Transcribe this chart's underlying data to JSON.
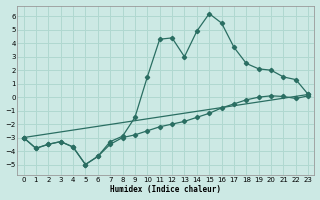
{
  "xlabel": "Humidex (Indice chaleur)",
  "bg_color": "#cce9e4",
  "grid_color": "#b0d8d0",
  "line_color": "#2a6e62",
  "xlim": [
    -0.5,
    23.5
  ],
  "ylim": [
    -5.8,
    6.8
  ],
  "yticks": [
    -5,
    -4,
    -3,
    -2,
    -1,
    0,
    1,
    2,
    3,
    4,
    5,
    6
  ],
  "xticks": [
    0,
    1,
    2,
    3,
    4,
    5,
    6,
    7,
    8,
    9,
    10,
    11,
    12,
    13,
    14,
    15,
    16,
    17,
    18,
    19,
    20,
    21,
    22,
    23
  ],
  "line1_x": [
    0,
    1,
    2,
    3,
    4,
    5,
    6,
    7,
    8,
    9,
    10,
    11,
    12,
    13,
    14,
    15,
    16,
    17,
    18,
    19,
    20,
    21,
    22,
    23
  ],
  "line1_y": [
    -3.0,
    -3.8,
    -3.5,
    -3.3,
    -3.7,
    -5.0,
    -4.4,
    -3.5,
    -3.0,
    -2.8,
    -2.5,
    -2.2,
    -2.0,
    -1.8,
    -1.5,
    -1.2,
    -0.8,
    -0.5,
    -0.2,
    0.0,
    0.1,
    0.05,
    -0.1,
    0.1
  ],
  "line2_x": [
    0,
    1,
    2,
    3,
    4,
    5,
    6,
    7,
    8,
    9,
    10,
    11,
    12,
    13,
    14,
    15,
    16,
    17,
    18,
    19,
    20,
    21,
    22,
    23
  ],
  "line2_y": [
    -3.0,
    -3.8,
    -3.5,
    -3.3,
    -3.7,
    -5.0,
    -4.4,
    -3.3,
    -2.9,
    -1.5,
    1.5,
    4.3,
    4.4,
    3.0,
    4.9,
    6.2,
    5.5,
    3.7,
    2.5,
    2.1,
    2.0,
    1.5,
    1.3,
    0.2
  ],
  "line3_x": [
    0,
    23
  ],
  "line3_y": [
    -3.0,
    0.2
  ]
}
